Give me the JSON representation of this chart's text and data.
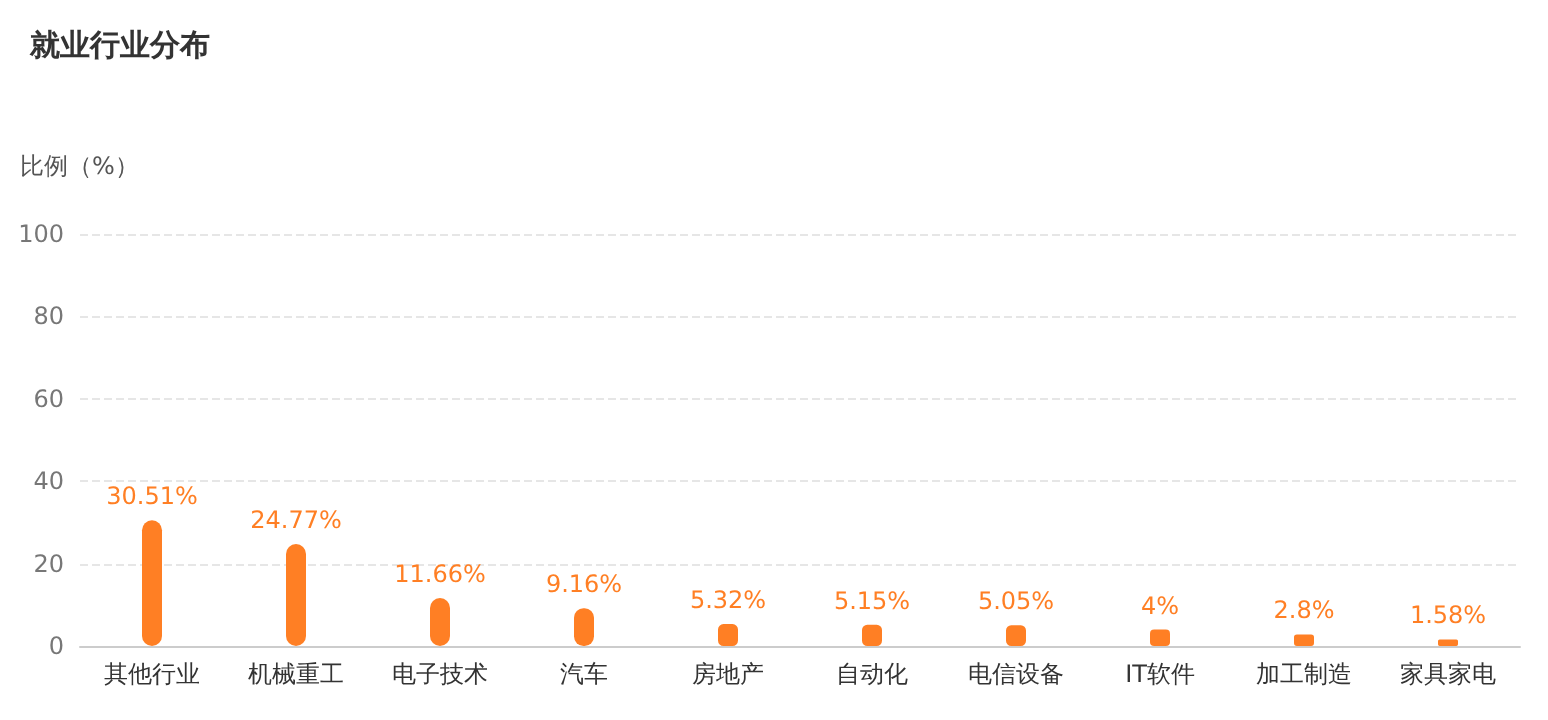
{
  "chart_data": {
    "type": "bar",
    "title": "就业行业分布",
    "ylabel": "比例（%）",
    "categories": [
      "其他行业",
      "机械重工",
      "电子技术",
      "汽车",
      "房地产",
      "自动化",
      "电信设备",
      "IT软件",
      "加工制造",
      "家具家电"
    ],
    "values": [
      30.51,
      24.77,
      11.66,
      9.16,
      5.32,
      5.15,
      5.05,
      4,
      2.8,
      1.58
    ],
    "value_labels": [
      "30.51%",
      "24.77%",
      "11.66%",
      "9.16%",
      "5.32%",
      "5.15%",
      "5.05%",
      "4%",
      "2.8%",
      "1.58%"
    ],
    "color": "#ff7f24",
    "ylim": [
      0,
      100
    ],
    "yticks": [
      0,
      20,
      40,
      60,
      80,
      100
    ],
    "grid": "y"
  }
}
